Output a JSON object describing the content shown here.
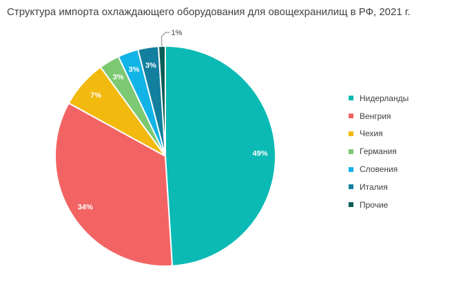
{
  "chart_data": {
    "type": "pie",
    "title": "Структура импорта охлаждающего оборудования для овощехранилищ в РФ, 2021 г.",
    "categories": [
      "Нидерланды",
      "Венгрия",
      "Чехия",
      "Германия",
      "Словения",
      "Италия",
      "Прочие"
    ],
    "values": [
      49,
      34,
      7,
      3,
      3,
      3,
      1
    ],
    "labels": [
      "49%",
      "34%",
      "7%",
      "3%",
      "3%",
      "3%",
      "1%"
    ],
    "colors": [
      "#0bbab4",
      "#f26464",
      "#f2b90f",
      "#7cc873",
      "#12b3e6",
      "#137f9e",
      "#0b5e57"
    ],
    "legend": "right",
    "start_angle": "12 o'clock, clockwise"
  }
}
